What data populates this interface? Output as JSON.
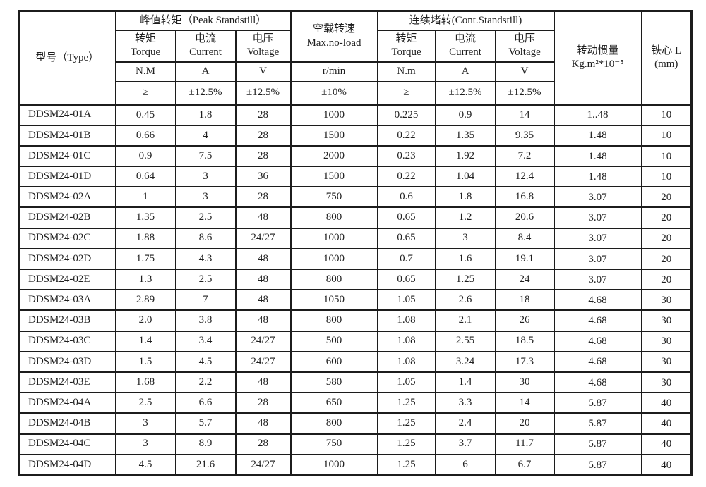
{
  "page": {
    "background": "#ffffff",
    "text_color": "#1f1f1f",
    "border_color": "#1c1c1c"
  },
  "table": {
    "header": {
      "type_label": "型号（Type）",
      "peak_group": "峰值转矩（Peak Standstill）",
      "noload_line1": "空载转速",
      "noload_line2": "Max.no-load",
      "cont_group": "连续堵转(Cont.Standstill)",
      "inertia_line1": "转动惯量",
      "inertia_line2": "Kg.m²*10⁻⁵",
      "core_line1": "铁心 L",
      "core_line2": "(mm)"
    },
    "subheaders": [
      {
        "cn": "转矩",
        "en": "Torque"
      },
      {
        "cn": "电流",
        "en": "Current"
      },
      {
        "cn": "电压",
        "en": "Voltage"
      },
      {
        "cn": "转矩",
        "en": "Torque"
      },
      {
        "cn": "电流",
        "en": "Current"
      },
      {
        "cn": "电压",
        "en": "Voltage"
      }
    ],
    "units": [
      "N.M",
      "A",
      "V",
      "r/min",
      "N.m",
      "A",
      "V"
    ],
    "tolerances": [
      "≥",
      "±12.5%",
      "±12.5%",
      "±10%",
      "≥",
      "±12.5%",
      "±12.5%"
    ],
    "rows": [
      [
        "DDSM24-01A",
        "0.45",
        "1.8",
        "28",
        "1000",
        "0.225",
        "0.9",
        "14",
        "1..48",
        "10"
      ],
      [
        "DDSM24-01B",
        "0.66",
        "4",
        "28",
        "1500",
        "0.22",
        "1.35",
        "9.35",
        "1.48",
        "10"
      ],
      [
        "DDSM24-01C",
        "0.9",
        "7.5",
        "28",
        "2000",
        "0.23",
        "1.92",
        "7.2",
        "1.48",
        "10"
      ],
      [
        "DDSM24-01D",
        "0.64",
        "3",
        "36",
        "1500",
        "0.22",
        "1.04",
        "12.4",
        "1.48",
        "10"
      ],
      [
        "DDSM24-02A",
        "1",
        "3",
        "28",
        "750",
        "0.6",
        "1.8",
        "16.8",
        "3.07",
        "20"
      ],
      [
        "DDSM24-02B",
        "1.35",
        "2.5",
        "48",
        "800",
        "0.65",
        "1.2",
        "20.6",
        "3.07",
        "20"
      ],
      [
        "DDSM24-02C",
        "1.88",
        "8.6",
        "24/27",
        "1000",
        "0.65",
        "3",
        "8.4",
        "3.07",
        "20"
      ],
      [
        "DDSM24-02D",
        "1.75",
        "4.3",
        "48",
        "1000",
        "0.7",
        "1.6",
        "19.1",
        "3.07",
        "20"
      ],
      [
        "DDSM24-02E",
        "1.3",
        "2.5",
        "48",
        "800",
        "0.65",
        "1.25",
        "24",
        "3.07",
        "20"
      ],
      [
        "DDSM24-03A",
        "2.89",
        "7",
        "48",
        "1050",
        "1.05",
        "2.6",
        "18",
        "4.68",
        "30"
      ],
      [
        "DDSM24-03B",
        "2.0",
        "3.8",
        "48",
        "800",
        "1.08",
        "2.1",
        "26",
        "4.68",
        "30"
      ],
      [
        "DDSM24-03C",
        "1.4",
        "3.4",
        "24/27",
        "500",
        "1.08",
        "2.55",
        "18.5",
        "4.68",
        "30"
      ],
      [
        "DDSM24-03D",
        "1.5",
        "4.5",
        "24/27",
        "600",
        "1.08",
        "3.24",
        "17.3",
        "4.68",
        "30"
      ],
      [
        "DDSM24-03E",
        "1.68",
        "2.2",
        "48",
        "580",
        "1.05",
        "1.4",
        "30",
        "4.68",
        "30"
      ],
      [
        "DDSM24-04A",
        "2.5",
        "6.6",
        "28",
        "650",
        "1.25",
        "3.3",
        "14",
        "5.87",
        "40"
      ],
      [
        "DDSM24-04B",
        "3",
        "5.7",
        "48",
        "800",
        "1.25",
        "2.4",
        "20",
        "5.87",
        "40"
      ],
      [
        "DDSM24-04C",
        "3",
        "8.9",
        "28",
        "750",
        "1.25",
        "3.7",
        "11.7",
        "5.87",
        "40"
      ],
      [
        "DDSM24-04D",
        "4.5",
        "21.6",
        "24/27",
        "1000",
        "1.25",
        "6",
        "6.7",
        "5.87",
        "40"
      ]
    ]
  }
}
